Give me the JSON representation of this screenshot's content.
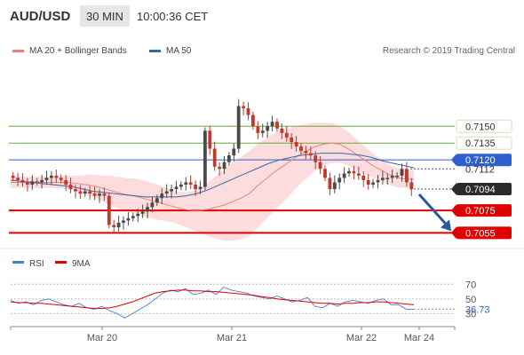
{
  "header": {
    "symbol": "AUD/USD",
    "timeframe": "30 MIN",
    "time": "10:00:36 CET"
  },
  "legend": {
    "ma20_label": "MA 20 + Bollinger Bands",
    "ma50_label": "MA 50",
    "ma20_color": "#f08080",
    "ma50_color": "#3a66a8",
    "research": "Research © 2019 Trading Central"
  },
  "rsi_legend": {
    "rsi_label": "RSI",
    "ma9_label": "9MA",
    "rsi_color": "#4a7fd6",
    "ma9_color": "#e00000"
  },
  "colors": {
    "up_candle": "#4a4a4a",
    "down_candle": "#c0392b",
    "band_fill": "#fbd3d3",
    "resistance": "#6aaa3a",
    "support": "#e00000",
    "pivot": "#2e5fd0",
    "arrow": "#2a5a96"
  },
  "chart_data": {
    "type": "candlestick",
    "price_axis": {
      "ylim": [
        0.7045,
        0.7185
      ]
    },
    "x_tick_labels": [
      "Mar 20",
      "Mar 21",
      "Mar 22",
      "Mar 24"
    ],
    "levels": [
      {
        "value": 0.715,
        "label": "0.7150",
        "kind": "resistance"
      },
      {
        "value": 0.7135,
        "label": "0.7135",
        "kind": "resistance"
      },
      {
        "value": 0.712,
        "label": "0.7120",
        "kind": "pivot"
      },
      {
        "value": 0.7112,
        "label": "0.7112",
        "kind": "last-high"
      },
      {
        "value": 0.7094,
        "label": "0.7094",
        "kind": "current-price"
      },
      {
        "value": 0.7075,
        "label": "0.7075",
        "kind": "support"
      },
      {
        "value": 0.7055,
        "label": "0.7055",
        "kind": "support"
      }
    ],
    "close_path": [
      0.7104,
      0.7102,
      0.71,
      0.7098,
      0.7101,
      0.71,
      0.7102,
      0.7104,
      0.7106,
      0.7104,
      0.7102,
      0.7098,
      0.7094,
      0.7092,
      0.709,
      0.7092,
      0.709,
      0.7088,
      0.709,
      0.7088,
      0.7062,
      0.706,
      0.7064,
      0.7066,
      0.7068,
      0.707,
      0.7072,
      0.7074,
      0.7078,
      0.7082,
      0.7086,
      0.709,
      0.7092,
      0.7094,
      0.7096,
      0.7098,
      0.71,
      0.7098,
      0.7094,
      0.7096,
      0.7146,
      0.713,
      0.7114,
      0.7112,
      0.7118,
      0.7124,
      0.713,
      0.7168,
      0.7166,
      0.716,
      0.715,
      0.7144,
      0.7146,
      0.715,
      0.7154,
      0.7148,
      0.7144,
      0.714,
      0.7136,
      0.7132,
      0.7128,
      0.7126,
      0.7124,
      0.7118,
      0.7112,
      0.7104,
      0.7094,
      0.71,
      0.7104,
      0.7108,
      0.711,
      0.7108,
      0.7106,
      0.7102,
      0.7098,
      0.71,
      0.7102,
      0.7104,
      0.7104,
      0.7106,
      0.7106,
      0.7112,
      0.71,
      0.7094
    ],
    "ma20_path": [
      0.71,
      0.71,
      0.71,
      0.71,
      0.71,
      0.71,
      0.71,
      0.71,
      0.7099,
      0.7098,
      0.7097,
      0.7095,
      0.7093,
      0.7091,
      0.7089,
      0.7088,
      0.7086,
      0.7084,
      0.7082,
      0.708,
      0.7078,
      0.7076,
      0.7075,
      0.7075,
      0.7076,
      0.7078,
      0.708,
      0.7083,
      0.7086,
      0.709,
      0.7097,
      0.7103,
      0.7109,
      0.7114,
      0.7119,
      0.7124,
      0.7128,
      0.7132,
      0.7134,
      0.7135,
      0.7134,
      0.713,
      0.7125,
      0.712,
      0.7115,
      0.7111,
      0.7107,
      0.7104,
      0.7103,
      0.7103
    ],
    "ma50_path": [
      0.7102,
      0.7101,
      0.71,
      0.7099,
      0.7098,
      0.7097,
      0.7096,
      0.7094,
      0.7092,
      0.7091,
      0.709,
      0.7089,
      0.7088,
      0.7087,
      0.7087,
      0.7087,
      0.7087,
      0.7088,
      0.709,
      0.7093,
      0.7097,
      0.7101,
      0.7105,
      0.7109,
      0.7113,
      0.7117,
      0.712,
      0.7122,
      0.7124,
      0.7125,
      0.7126,
      0.7126,
      0.7126,
      0.7125,
      0.7124,
      0.7122,
      0.7119,
      0.7117,
      0.7115,
      0.7113
    ],
    "band_half_width_path": [
      0.0005,
      0.0005,
      0.0005,
      0.0005,
      0.0005,
      0.0006,
      0.0008,
      0.001,
      0.0012,
      0.0014,
      0.0015,
      0.0016,
      0.0016,
      0.0015,
      0.0014,
      0.0016,
      0.002,
      0.0026,
      0.0032,
      0.0036,
      0.0038,
      0.0037,
      0.0035,
      0.0032,
      0.0028,
      0.0024,
      0.002,
      0.0018,
      0.0016,
      0.0014,
      0.0012,
      0.001,
      0.0009,
      0.0008,
      0.0008
    ],
    "forecast_arrow": {
      "from": 0.7094,
      "to": 0.7055
    },
    "rsi": {
      "ylim": [
        22,
        80
      ],
      "ticks": [
        70,
        50,
        30
      ],
      "current_value": "36.73",
      "rsi_path": [
        48,
        44,
        46,
        42,
        48,
        50,
        46,
        42,
        40,
        44,
        38,
        36,
        40,
        34,
        30,
        24,
        30,
        36,
        42,
        50,
        58,
        62,
        60,
        64,
        56,
        58,
        62,
        56,
        66,
        62,
        60,
        58,
        54,
        52,
        50,
        54,
        50,
        46,
        48,
        52,
        40,
        38,
        44,
        40,
        46,
        48,
        46,
        44,
        48,
        50,
        42,
        42,
        36,
        36
      ],
      "ma9_path": [
        46,
        45,
        45,
        44,
        44,
        43,
        42,
        41,
        40,
        39,
        38,
        37,
        37,
        38,
        40,
        43,
        46,
        50,
        54,
        58,
        60,
        61,
        62,
        62,
        61,
        61,
        60,
        60,
        59,
        58,
        57,
        56,
        55,
        53,
        52,
        50,
        49,
        48,
        47,
        46,
        45,
        44,
        44,
        43,
        44,
        44,
        45,
        45,
        46,
        46,
        45,
        44,
        43,
        42
      ]
    }
  }
}
